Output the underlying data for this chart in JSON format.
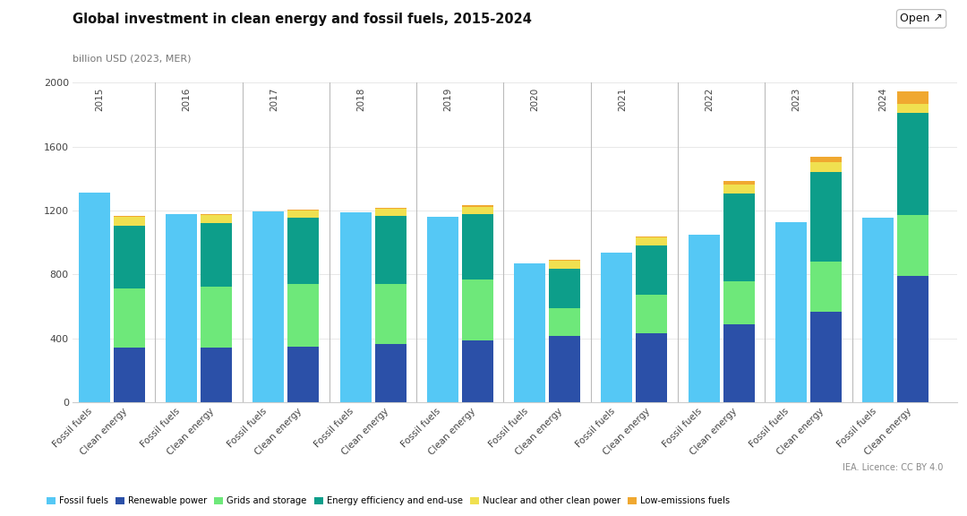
{
  "title": "Global investment in clean energy and fossil fuels, 2015-2024",
  "ylabel": "billion USD (2023, MER)",
  "ylim": [
    0,
    2000
  ],
  "yticks": [
    0,
    400,
    800,
    1200,
    1600,
    2000
  ],
  "years": [
    2015,
    2016,
    2017,
    2018,
    2019,
    2020,
    2021,
    2022,
    2023,
    2024
  ],
  "fossil_fuels": [
    1310,
    1175,
    1195,
    1190,
    1160,
    870,
    935,
    1050,
    1130,
    1155
  ],
  "renewable_power": [
    345,
    345,
    350,
    365,
    390,
    415,
    430,
    490,
    570,
    790
  ],
  "grids_and_storage": [
    370,
    380,
    390,
    375,
    380,
    175,
    245,
    265,
    310,
    380
  ],
  "energy_efficiency": [
    390,
    395,
    415,
    425,
    405,
    245,
    305,
    550,
    560,
    640
  ],
  "nuclear": [
    55,
    50,
    45,
    45,
    50,
    50,
    50,
    55,
    60,
    55
  ],
  "low_emissions": [
    8,
    8,
    8,
    8,
    8,
    8,
    8,
    25,
    35,
    80
  ],
  "colors": {
    "fossil_fuels": "#55C8F5",
    "renewable_power": "#2B50A8",
    "grids_and_storage": "#6EE87A",
    "energy_efficiency": "#0D9E8A",
    "nuclear": "#F0E050",
    "low_emissions": "#F0A830"
  },
  "legend_labels": [
    "Fossil fuels",
    "Renewable power",
    "Grids and storage",
    "Energy efficiency and end-use",
    "Nuclear and other clean power",
    "Low-emissions fuels"
  ],
  "background_color": "#ffffff",
  "grid_color": "#e8e8e8",
  "separator_color": "#bbbbbb",
  "open_button_text": "Open ↗"
}
